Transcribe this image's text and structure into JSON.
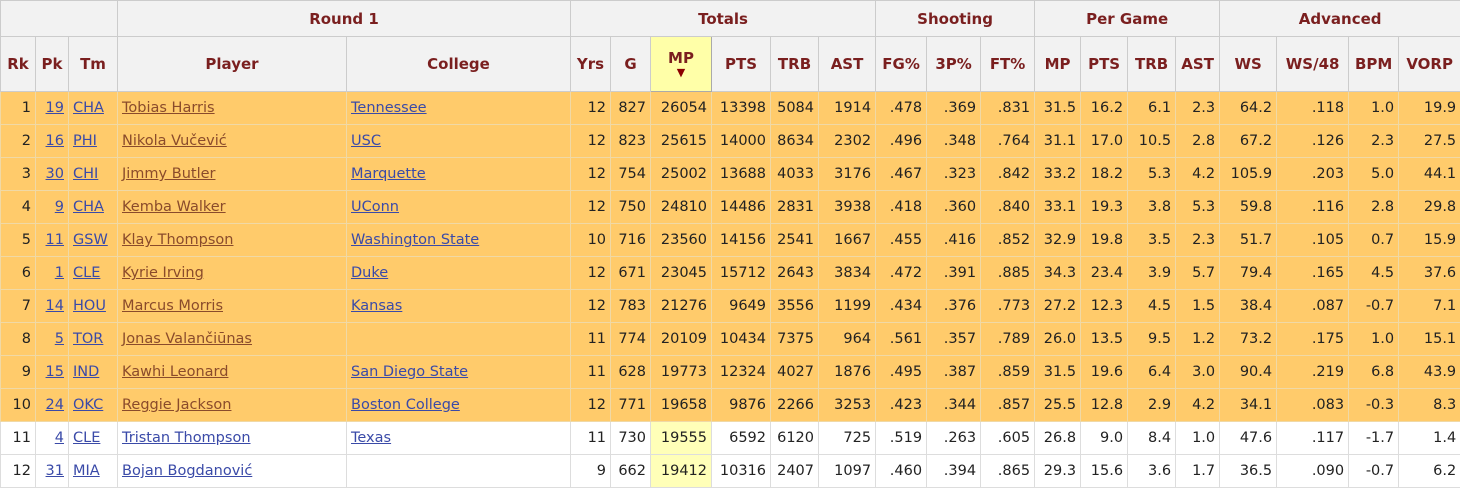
{
  "groups": [
    {
      "label": "",
      "span": 3
    },
    {
      "label": "Round 1",
      "span": 2
    },
    {
      "label": "Totals",
      "span": 6
    },
    {
      "label": "Shooting",
      "span": 3
    },
    {
      "label": "Per Game",
      "span": 4
    },
    {
      "label": "Advanced",
      "span": 4
    }
  ],
  "columns": [
    "Rk",
    "Pk",
    "Tm",
    "Player",
    "College",
    "Yrs",
    "G",
    "MP",
    "PTS",
    "TRB",
    "AST",
    "FG%",
    "3P%",
    "FT%",
    "MP",
    "PTS",
    "TRB",
    "AST",
    "WS",
    "WS/48",
    "BPM",
    "VORP"
  ],
  "sort_indicator": "▼",
  "colors": {
    "highlight": "#ffcb6b",
    "sorted_column": "#ffffa8",
    "header_text": "#7a1f1f"
  },
  "rows": [
    [
      "1",
      "19",
      "CHA",
      "Tobias Harris",
      "Tennessee",
      "12",
      "827",
      "26054",
      "13398",
      "5084",
      "1914",
      ".478",
      ".369",
      ".831",
      "31.5",
      "16.2",
      "6.1",
      "2.3",
      "64.2",
      ".118",
      "1.0",
      "19.9"
    ],
    [
      "2",
      "16",
      "PHI",
      "Nikola Vučević",
      "USC",
      "12",
      "823",
      "25615",
      "14000",
      "8634",
      "2302",
      ".496",
      ".348",
      ".764",
      "31.1",
      "17.0",
      "10.5",
      "2.8",
      "67.2",
      ".126",
      "2.3",
      "27.5"
    ],
    [
      "3",
      "30",
      "CHI",
      "Jimmy Butler",
      "Marquette",
      "12",
      "754",
      "25002",
      "13688",
      "4033",
      "3176",
      ".467",
      ".323",
      ".842",
      "33.2",
      "18.2",
      "5.3",
      "4.2",
      "105.9",
      ".203",
      "5.0",
      "44.1"
    ],
    [
      "4",
      "9",
      "CHA",
      "Kemba Walker",
      "UConn",
      "12",
      "750",
      "24810",
      "14486",
      "2831",
      "3938",
      ".418",
      ".360",
      ".840",
      "33.1",
      "19.3",
      "3.8",
      "5.3",
      "59.8",
      ".116",
      "2.8",
      "29.8"
    ],
    [
      "5",
      "11",
      "GSW",
      "Klay Thompson",
      "Washington State",
      "10",
      "716",
      "23560",
      "14156",
      "2541",
      "1667",
      ".455",
      ".416",
      ".852",
      "32.9",
      "19.8",
      "3.5",
      "2.3",
      "51.7",
      ".105",
      "0.7",
      "15.9"
    ],
    [
      "6",
      "1",
      "CLE",
      "Kyrie Irving",
      "Duke",
      "12",
      "671",
      "23045",
      "15712",
      "2643",
      "3834",
      ".472",
      ".391",
      ".885",
      "34.3",
      "23.4",
      "3.9",
      "5.7",
      "79.4",
      ".165",
      "4.5",
      "37.6"
    ],
    [
      "7",
      "14",
      "HOU",
      "Marcus Morris",
      "Kansas",
      "12",
      "783",
      "21276",
      "9649",
      "3556",
      "1199",
      ".434",
      ".376",
      ".773",
      "27.2",
      "12.3",
      "4.5",
      "1.5",
      "38.4",
      ".087",
      "-0.7",
      "7.1"
    ],
    [
      "8",
      "5",
      "TOR",
      "Jonas Valančiūnas",
      "",
      "11",
      "774",
      "20109",
      "10434",
      "7375",
      "964",
      ".561",
      ".357",
      ".789",
      "26.0",
      "13.5",
      "9.5",
      "1.2",
      "73.2",
      ".175",
      "1.0",
      "15.1"
    ],
    [
      "9",
      "15",
      "IND",
      "Kawhi Leonard",
      "San Diego State",
      "11",
      "628",
      "19773",
      "12324",
      "4027",
      "1876",
      ".495",
      ".387",
      ".859",
      "31.5",
      "19.6",
      "6.4",
      "3.0",
      "90.4",
      ".219",
      "6.8",
      "43.9"
    ],
    [
      "10",
      "24",
      "OKC",
      "Reggie Jackson",
      "Boston College",
      "12",
      "771",
      "19658",
      "9876",
      "2266",
      "3253",
      ".423",
      ".344",
      ".857",
      "25.5",
      "12.8",
      "2.9",
      "4.2",
      "34.1",
      ".083",
      "-0.3",
      "8.3"
    ],
    [
      "11",
      "4",
      "CLE",
      "Tristan Thompson",
      "Texas",
      "11",
      "730",
      "19555",
      "6592",
      "6120",
      "725",
      ".519",
      ".263",
      ".605",
      "26.8",
      "9.0",
      "8.4",
      "1.0",
      "47.6",
      ".117",
      "-1.7",
      "1.4"
    ],
    [
      "12",
      "31",
      "MIA",
      "Bojan Bogdanović",
      "",
      "9",
      "662",
      "19412",
      "10316",
      "2407",
      "1097",
      ".460",
      ".394",
      ".865",
      "29.3",
      "15.6",
      "3.6",
      "1.7",
      "36.5",
      ".090",
      "-0.7",
      "6.2"
    ]
  ],
  "highlighted_rows": 10
}
